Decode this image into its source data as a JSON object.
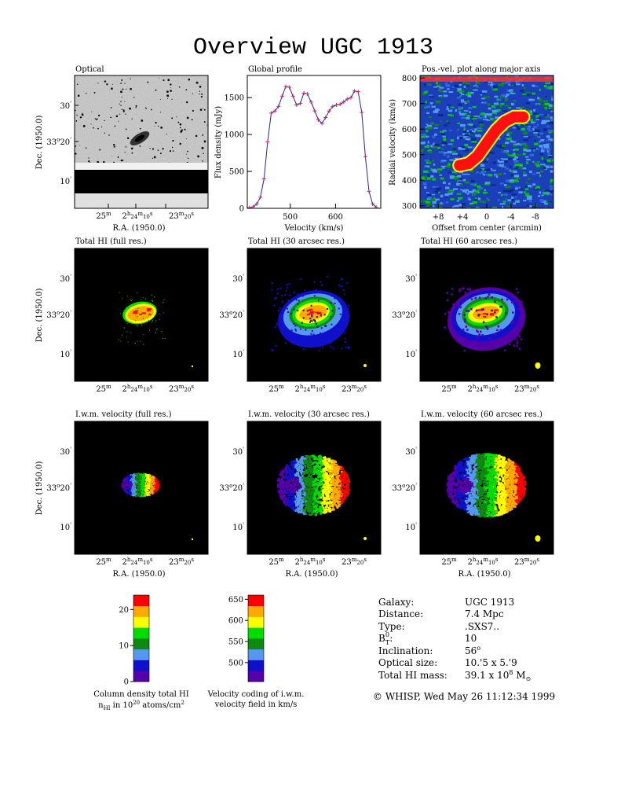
{
  "title": "Overview UGC 1913",
  "panels": {
    "optical": {
      "title": "Optical"
    },
    "global_profile": {
      "title": "Global profile"
    },
    "pv": {
      "title": "Pos.-vel. plot along major axis"
    },
    "hi_full": {
      "title": "Total HI (full res.)"
    },
    "hi_30": {
      "title": "Total HI (30 arcsec res.)"
    },
    "hi_60": {
      "title": "Total HI (60 arcsec res.)"
    },
    "vel_full": {
      "title": "I.w.m. velocity (full res.)"
    },
    "vel_30": {
      "title": "I.w.m. velocity (30 arcsec res.)"
    },
    "vel_60": {
      "title": "I.w.m. velocity (60 arcsec res.)"
    }
  },
  "sky_axes": {
    "dec_label": "Dec. (1950.0)",
    "ra_label": "R.A. (1950.0)",
    "dec_ticks": [
      "30",
      "33°20",
      "10"
    ],
    "ra_ticks": [
      "25m",
      "2h24m10s",
      "23m20s"
    ]
  },
  "chart_data": [
    {
      "type": "line",
      "title": "Global profile",
      "xlabel": "Velocity (km/s)",
      "ylabel": "Flux density (mJy)",
      "xlim": [
        405,
        700
      ],
      "ylim": [
        0,
        1800
      ],
      "xticks": [
        500,
        600
      ],
      "yticks": [
        0,
        500,
        1000,
        1500
      ],
      "x": [
        410,
        418,
        426,
        434,
        442,
        450,
        458,
        466,
        474,
        482,
        490,
        498,
        506,
        514,
        522,
        530,
        538,
        546,
        554,
        562,
        570,
        578,
        586,
        594,
        602,
        610,
        618,
        626,
        634,
        642,
        650,
        658,
        666,
        674,
        682,
        690
      ],
      "y": [
        10,
        20,
        60,
        150,
        400,
        900,
        1290,
        1320,
        1380,
        1520,
        1650,
        1640,
        1520,
        1400,
        1420,
        1560,
        1550,
        1440,
        1320,
        1200,
        1150,
        1230,
        1320,
        1380,
        1400,
        1410,
        1440,
        1480,
        1500,
        1590,
        1580,
        1300,
        700,
        230,
        60,
        15
      ],
      "line_color": "#2222aa",
      "marker_color": "#cc2266"
    },
    {
      "type": "heatmap",
      "title": "Pos.-vel. plot along major axis",
      "xlabel": "Offset from center (arcmin)",
      "ylabel": "Radial velocity (km/s)",
      "xlim": [
        11,
        -11
      ],
      "ylim": [
        290,
        810
      ],
      "xticks": [
        "+8",
        "+4",
        "0",
        "-4",
        "-8"
      ],
      "xtick_values": [
        8,
        4,
        0,
        -4,
        -8
      ],
      "yticks": [
        300,
        400,
        500,
        600,
        700,
        800
      ],
      "emission_ridge": {
        "offset": [
          4.5,
          3,
          1.5,
          0,
          -1.5,
          -3,
          -4.5,
          -6
        ],
        "velocity": [
          458,
          465,
          495,
          545,
          595,
          630,
          648,
          648
        ]
      }
    },
    {
      "type": "heatmap",
      "title": "Column density total HI",
      "colorbar_label": "Column density total HI",
      "colorbar_ticks": [
        0,
        10,
        20
      ],
      "colorbar_range": [
        0,
        24
      ],
      "colors": [
        "#5500aa",
        "#1010cc",
        "#5599ee",
        "#118811",
        "#00dd00",
        "#ffff00",
        "#ffaa00",
        "#ff0000"
      ]
    },
    {
      "type": "heatmap",
      "title": "Velocity coding of i.w.m. velocity field in km/s",
      "colorbar_label": "Velocity coding of i.w.m. velocity field in km/s",
      "colorbar_ticks": [
        500,
        550,
        600,
        650
      ],
      "colorbar_range": [
        455,
        660
      ],
      "colors": [
        "#5500aa",
        "#1010cc",
        "#5599ee",
        "#118811",
        "#00dd00",
        "#ffff00",
        "#ffaa00",
        "#ff0000"
      ]
    }
  ],
  "legends": {
    "column_density": {
      "line1": "Column density total HI",
      "line2_n": "n",
      "line2_sub": "HI",
      "line2_mid": " in 10",
      "line2_sup": "20",
      "line2_end": " atoms/cm",
      "line2_exp": "2"
    },
    "velocity": {
      "line1": "Velocity coding of i.w.m.",
      "line2": "velocity field in km/s"
    }
  },
  "galaxy_info": {
    "labels": [
      "Galaxy:",
      "Distance:",
      "Type:",
      "B",
      "Inclination:",
      "Optical size:",
      "Total HI mass:"
    ],
    "bt_sup": "0",
    "bt_sub": "T",
    "bt_colon": ":",
    "galaxy": "UGC 1913",
    "distance": "7.4 Mpc",
    "type": ".SXS7..",
    "bt": "10",
    "inclination": "56",
    "inclination_unit": "o",
    "optical_size": "10.'5 x 5.'9",
    "hi_mass": "39.1 x 10",
    "hi_mass_exp": "8",
    "hi_mass_unit": " M",
    "hi_mass_sub": "⊙"
  },
  "footer": "© WHISP, Wed May 26 11:12:34 1999"
}
